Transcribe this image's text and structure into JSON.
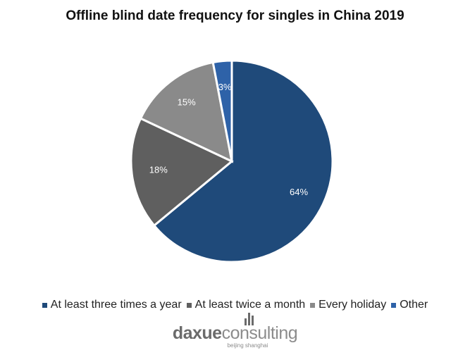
{
  "chart_data": {
    "type": "pie",
    "title": "Offline blind date frequency for singles in China 2019",
    "categories": [
      "At least three times a year",
      "At least twice a month",
      "Every holiday",
      "Other"
    ],
    "values": [
      64,
      18,
      15,
      3
    ],
    "labels": [
      "64%",
      "18%",
      "15%",
      "3%"
    ],
    "colors": [
      "#1f4a7a",
      "#5f5f5f",
      "#8a8a8a",
      "#2e62a8"
    ],
    "start_angle_deg": 0,
    "direction": "clockwise",
    "legend_position": "bottom"
  },
  "logo": {
    "brand_part1": "daxue",
    "brand_part2": "consulting",
    "tagline": "beijing shanghai"
  }
}
